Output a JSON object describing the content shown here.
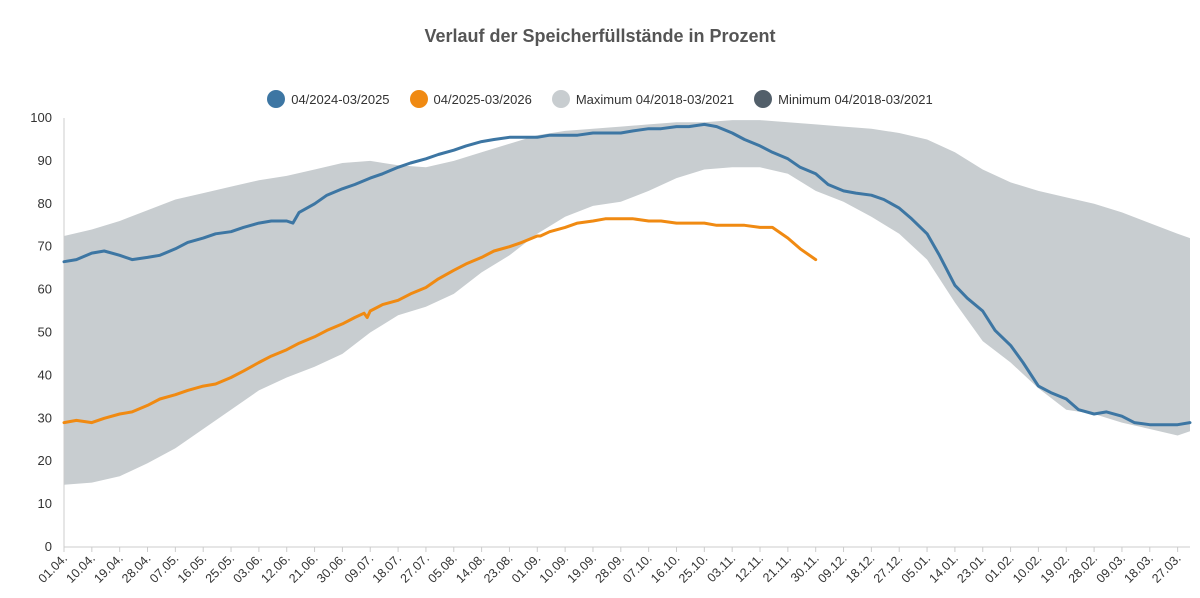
{
  "chart_data": {
    "type": "area",
    "title": "Verlauf der Speicherfüllstände in Prozent",
    "xlabel": "",
    "ylabel": "",
    "ylim": [
      0,
      100
    ],
    "yticks": [
      0,
      10,
      20,
      30,
      40,
      50,
      60,
      70,
      80,
      90,
      100
    ],
    "grid": false,
    "legend_position": "top",
    "x_range_days": [
      0,
      364
    ],
    "categories": [
      "01.04.",
      "10.04.",
      "19.04.",
      "28.04.",
      "07.05.",
      "16.05.",
      "25.05.",
      "03.06.",
      "12.06.",
      "21.06.",
      "30.06.",
      "09.07.",
      "18.07.",
      "27.07.",
      "05.08.",
      "14.08.",
      "23.08.",
      "01.09.",
      "10.09.",
      "19.09.",
      "28.09.",
      "07.10.",
      "16.10.",
      "25.10.",
      "03.11.",
      "12.11.",
      "21.11.",
      "30.11.",
      "09.12.",
      "18.12.",
      "27.12.",
      "05.01.",
      "14.01.",
      "23.01.",
      "01.02.",
      "10.02.",
      "19.02.",
      "28.02.",
      "09.03.",
      "18.03.",
      "27.03."
    ],
    "band": {
      "color": "#c8cdd0",
      "max_name": "Maximum 04/2018-03/2021",
      "min_name": "Minimum 04/2018-03/2021",
      "x": [
        0,
        9,
        18,
        27,
        36,
        45,
        54,
        63,
        72,
        81,
        90,
        99,
        108,
        117,
        126,
        135,
        144,
        153,
        162,
        171,
        180,
        189,
        198,
        207,
        216,
        225,
        234,
        243,
        252,
        261,
        270,
        279,
        288,
        297,
        306,
        315,
        324,
        333,
        342,
        351,
        360,
        364
      ],
      "max": [
        72.5,
        74,
        76,
        78.5,
        81,
        82.5,
        84,
        85.5,
        86.5,
        88,
        89.5,
        90,
        89,
        88.5,
        90,
        92,
        94,
        96,
        97,
        97.5,
        98,
        98.5,
        99,
        99,
        99.5,
        99.5,
        99,
        98.5,
        98,
        97.5,
        96.5,
        95,
        92,
        88,
        85,
        83,
        81.5,
        80,
        78,
        75.5,
        73,
        72
      ],
      "min": [
        14.5,
        15,
        16.5,
        19.5,
        23,
        27.5,
        32,
        36.5,
        39.5,
        42,
        45,
        50,
        54,
        56,
        59,
        64,
        68,
        73,
        77,
        79.5,
        80.5,
        83,
        86,
        88,
        88.5,
        88.5,
        87,
        83,
        80.5,
        77,
        73,
        67,
        57,
        48,
        43,
        37,
        32,
        31,
        29,
        27.5,
        26,
        27
      ]
    },
    "series": [
      {
        "name": "04/2024-03/2025",
        "color": "#3d76a3",
        "x": [
          0,
          4,
          9,
          13,
          18,
          22,
          27,
          31,
          36,
          40,
          45,
          49,
          54,
          58,
          63,
          67,
          72,
          74,
          76,
          81,
          85,
          90,
          94,
          99,
          103,
          108,
          112,
          117,
          121,
          126,
          130,
          135,
          139,
          144,
          148,
          153,
          157,
          162,
          166,
          171,
          175,
          180,
          184,
          189,
          193,
          198,
          202,
          207,
          211,
          216,
          220,
          225,
          229,
          234,
          238,
          243,
          247,
          252,
          256,
          261,
          265,
          270,
          274,
          279,
          283,
          288,
          292,
          297,
          301,
          306,
          310,
          315,
          319,
          324,
          328,
          333,
          337,
          342,
          346,
          351,
          355,
          360,
          364
        ],
        "values": [
          66.5,
          67,
          68.5,
          69,
          68,
          67,
          67.5,
          68,
          69.5,
          71,
          72,
          73,
          73.5,
          74.5,
          75.5,
          76,
          76,
          75.5,
          78,
          80,
          82,
          83.5,
          84.5,
          86,
          87,
          88.5,
          89.5,
          90.5,
          91.5,
          92.5,
          93.5,
          94.5,
          95,
          95.5,
          95.5,
          95.5,
          96,
          96,
          96,
          96.5,
          96.5,
          96.5,
          97,
          97.5,
          97.5,
          98,
          98,
          98.5,
          98,
          96.5,
          95,
          93.5,
          92,
          90.5,
          88.5,
          87,
          84.5,
          83,
          82.5,
          82,
          81,
          79,
          76.5,
          73,
          68,
          61,
          58,
          55,
          50.5,
          47,
          43,
          37.5,
          36,
          34.5,
          32,
          31,
          31.5,
          30.5,
          29,
          28.5,
          28.5,
          28.5,
          29
        ]
      },
      {
        "name": "04/2025-03/2026",
        "color": "#f08a12",
        "x": [
          0,
          4,
          9,
          13,
          18,
          22,
          27,
          31,
          36,
          40,
          45,
          49,
          54,
          58,
          63,
          67,
          72,
          76,
          81,
          85,
          90,
          94,
          97,
          98,
          99,
          103,
          108,
          112,
          117,
          121,
          126,
          130,
          135,
          139,
          144,
          148,
          153,
          154,
          157,
          162,
          166,
          171,
          175,
          180,
          184,
          189,
          193,
          198,
          202,
          207,
          211,
          216,
          220,
          225,
          229,
          234,
          238,
          243
        ],
        "values": [
          29,
          29.5,
          29,
          30,
          31,
          31.5,
          33,
          34.5,
          35.5,
          36.5,
          37.5,
          38,
          39.5,
          41,
          43,
          44.5,
          46,
          47.5,
          49,
          50.5,
          52,
          53.5,
          54.5,
          53.5,
          55,
          56.5,
          57.5,
          59,
          60.5,
          62.5,
          64.5,
          66,
          67.5,
          69,
          70,
          71,
          72.5,
          72.5,
          73.5,
          74.5,
          75.5,
          76,
          76.5,
          76.5,
          76.5,
          76,
          76,
          75.5,
          75.5,
          75.5,
          75,
          75,
          75,
          74.5,
          74.5,
          72,
          69.5,
          67
        ]
      }
    ]
  }
}
